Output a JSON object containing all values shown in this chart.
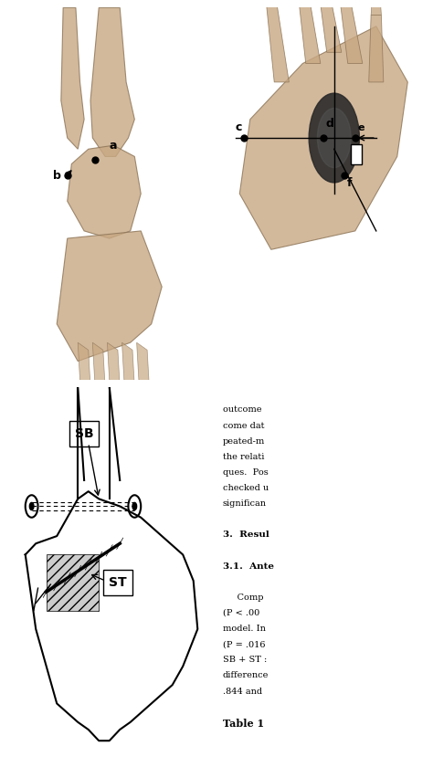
{
  "bg_color": "#d4e8f0",
  "text_color": "#000000",
  "figure_bg": "#ffffff",
  "top_left_bg": "#c8dfe8",
  "top_right_bg": "#c8dfe8",
  "bottom_left_bg": "#ffffff",
  "bottom_right_bg": "#ffffff",
  "text_block": [
    "outcome ",
    "come dat",
    "peated-m",
    "the relati",
    "ques.  Pos",
    "checked u",
    "significan",
    "",
    "3.  Resul",
    "",
    "3.1.  Ante",
    "",
    "     Comp",
    "(P < .00",
    "model. In",
    "(P = .016",
    "SB + ST :",
    "difference",
    ".844 and ",
    "",
    "Table 1"
  ],
  "label_a": "a",
  "label_b": "b",
  "label_c": "c",
  "label_d": "d",
  "label_e": "e",
  "label_f": "f",
  "label_sb": "SB",
  "label_st": "ST"
}
